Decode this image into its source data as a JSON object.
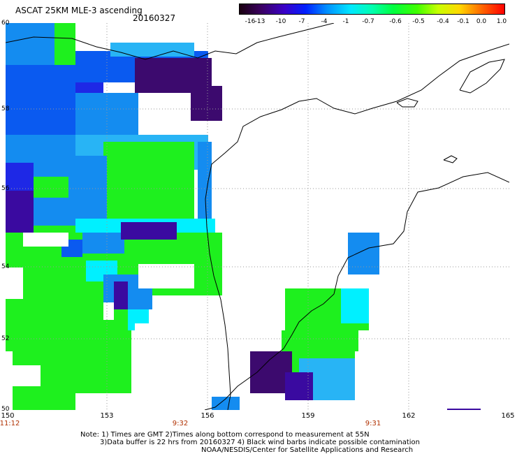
{
  "header": {
    "title": "ASCAT 25KM MLE-3 ascending",
    "date": "20160327"
  },
  "colorbar": {
    "labels": [
      "-16",
      "-13",
      "-10",
      "-7",
      "-4",
      "-1",
      "-0.7",
      "-0.6",
      "-0.5",
      "-0.4",
      "-0.1",
      "0.0",
      "1.0"
    ],
    "colors": [
      "#1a0010",
      "#3a0060",
      "#3a00c8",
      "#0020ff",
      "#0090ff",
      "#00e8ff",
      "#00ffb0",
      "#00ff40",
      "#40ff00",
      "#c8ff00",
      "#ffd800",
      "#ff6000",
      "#ff0000"
    ]
  },
  "map": {
    "lat_labels": [
      "60",
      "58",
      "56",
      "54",
      "52",
      "50"
    ],
    "lon_labels": [
      "150",
      "153",
      "156",
      "159",
      "162",
      "165"
    ],
    "time_labels": [
      "11:12",
      "9:32",
      "9:31"
    ],
    "colors": {
      "deep_purple": "#3c0a6e",
      "purple": "#3a0aa0",
      "dark_blue": "#1e28e6",
      "blue": "#0a5af0",
      "sky": "#148cf0",
      "light_sky": "#28b4f5",
      "cyan": "#00f0ff",
      "green": "#1ef01e",
      "grid": "#999999",
      "coast": "#000000"
    }
  },
  "footer": {
    "note_line1": "Note: 1) Times are GMT 2)Times along bottom correspond to measurement at 55N",
    "note_line2": "3)Data buffer is 22 hrs from 20160327 4) Black wind barbs indicate possible contamination",
    "note_line3": "NOAA/NESDIS/Center for Satellite Applications and Research"
  }
}
